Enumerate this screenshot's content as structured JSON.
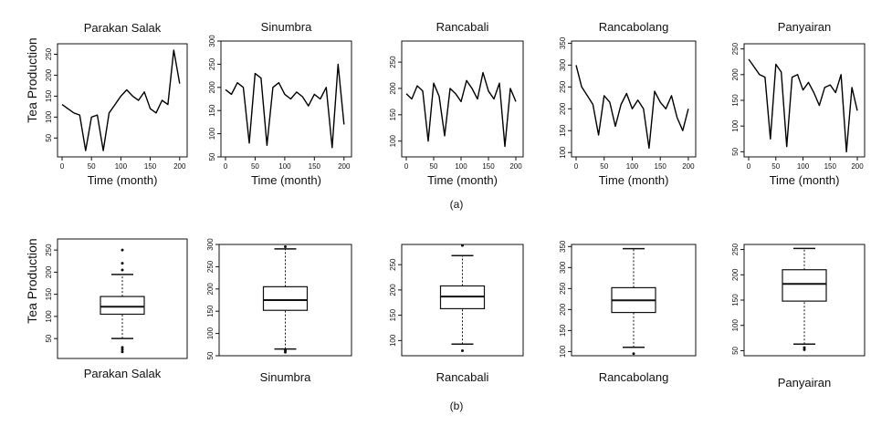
{
  "figure": {
    "row_labels": [
      "(a)",
      "(b)"
    ],
    "ylabel": "Tea Production"
  },
  "chart_data": [
    {
      "type": "line",
      "panel": "a",
      "title": "Parakan Salak",
      "xlabel": "Time (month)",
      "ylabel": "Tea Production",
      "xlim": [
        0,
        205
      ],
      "ylim": [
        5,
        275
      ],
      "xticks": [
        0,
        50,
        100,
        150,
        200
      ],
      "yticks": [
        50,
        100,
        150,
        200,
        250
      ],
      "x": [
        0,
        10,
        20,
        30,
        40,
        50,
        60,
        70,
        80,
        90,
        100,
        110,
        120,
        130,
        140,
        150,
        160,
        170,
        180,
        190,
        200
      ],
      "values": [
        130,
        120,
        110,
        105,
        20,
        100,
        105,
        20,
        110,
        130,
        150,
        165,
        150,
        140,
        160,
        120,
        110,
        140,
        130,
        260,
        180
      ]
    },
    {
      "type": "line",
      "panel": "a",
      "title": "Sinumbra",
      "xlabel": "Time (month)",
      "ylabel": "",
      "xlim": [
        0,
        205
      ],
      "ylim": [
        50,
        300
      ],
      "xticks": [
        0,
        50,
        100,
        150,
        200
      ],
      "yticks": [
        50,
        100,
        150,
        200,
        250,
        300
      ],
      "x": [
        0,
        10,
        20,
        30,
        40,
        50,
        60,
        70,
        80,
        90,
        100,
        110,
        120,
        130,
        140,
        150,
        160,
        170,
        180,
        190,
        200
      ],
      "values": [
        195,
        185,
        210,
        200,
        80,
        230,
        220,
        75,
        200,
        210,
        185,
        175,
        190,
        180,
        160,
        185,
        175,
        200,
        70,
        250,
        120
      ]
    },
    {
      "type": "line",
      "panel": "a",
      "title": "Rancabali",
      "xlabel": "Time (month)",
      "ylabel": "",
      "xlim": [
        0,
        205
      ],
      "ylim": [
        70,
        290
      ],
      "xticks": [
        0,
        50,
        100,
        150,
        200
      ],
      "yticks": [
        100,
        150,
        200,
        250
      ],
      "x": [
        0,
        10,
        20,
        30,
        40,
        50,
        60,
        70,
        80,
        90,
        100,
        110,
        120,
        130,
        140,
        150,
        160,
        170,
        180,
        190,
        200
      ],
      "values": [
        190,
        180,
        205,
        195,
        100,
        210,
        185,
        110,
        200,
        190,
        175,
        215,
        200,
        180,
        230,
        195,
        180,
        210,
        90,
        200,
        175
      ]
    },
    {
      "type": "line",
      "panel": "a",
      "title": "Rancabolang",
      "xlabel": "Time (month)",
      "ylabel": "",
      "xlim": [
        0,
        205
      ],
      "ylim": [
        90,
        355
      ],
      "xticks": [
        0,
        50,
        100,
        150,
        200
      ],
      "yticks": [
        100,
        150,
        200,
        250,
        300,
        350
      ],
      "x": [
        0,
        10,
        20,
        30,
        40,
        50,
        60,
        70,
        80,
        90,
        100,
        110,
        120,
        130,
        140,
        150,
        160,
        170,
        180,
        190,
        200
      ],
      "values": [
        300,
        250,
        230,
        210,
        140,
        230,
        215,
        160,
        210,
        235,
        200,
        220,
        200,
        110,
        240,
        215,
        200,
        230,
        180,
        150,
        200
      ]
    },
    {
      "type": "line",
      "panel": "a",
      "title": "Panyairan",
      "xlabel": "Time (month)",
      "ylabel": "",
      "xlim": [
        0,
        205
      ],
      "ylim": [
        40,
        260
      ],
      "xticks": [
        0,
        50,
        100,
        150,
        200
      ],
      "yticks": [
        50,
        100,
        150,
        200,
        250
      ],
      "x": [
        0,
        10,
        20,
        30,
        40,
        50,
        60,
        70,
        80,
        90,
        100,
        110,
        120,
        130,
        140,
        150,
        160,
        170,
        180,
        190,
        200
      ],
      "values": [
        230,
        215,
        200,
        195,
        75,
        220,
        205,
        60,
        195,
        200,
        170,
        185,
        165,
        140,
        175,
        180,
        165,
        200,
        50,
        175,
        130
      ]
    },
    {
      "type": "box",
      "panel": "b",
      "title": "Parakan Salak",
      "ylabel": "Tea Production",
      "ylim": [
        5,
        275
      ],
      "yticks": [
        50,
        100,
        150,
        200,
        250
      ],
      "whisker_low": 50,
      "q1": 105,
      "median": 122,
      "q3": 145,
      "whisker_high": 195,
      "outliers": [
        20,
        25,
        30,
        205,
        220,
        250
      ]
    },
    {
      "type": "box",
      "panel": "b",
      "title": "Sinumbra",
      "ylabel": "",
      "ylim": [
        50,
        300
      ],
      "yticks": [
        50,
        100,
        150,
        200,
        250,
        300
      ],
      "whisker_low": 65,
      "q1": 152,
      "median": 175,
      "q3": 205,
      "whisker_high": 290,
      "outliers": [
        58,
        62,
        295
      ]
    },
    {
      "type": "box",
      "panel": "b",
      "title": "Rancabali",
      "ylabel": "",
      "ylim": [
        70,
        290
      ],
      "yticks": [
        100,
        150,
        200,
        250
      ],
      "whisker_low": 93,
      "q1": 163,
      "median": 187,
      "q3": 208,
      "whisker_high": 268,
      "outliers": [
        80,
        288
      ]
    },
    {
      "type": "box",
      "panel": "b",
      "title": "Rancabolang",
      "ylabel": "",
      "ylim": [
        90,
        355
      ],
      "yticks": [
        100,
        150,
        200,
        250,
        300,
        350
      ],
      "whisker_low": 110,
      "q1": 193,
      "median": 222,
      "q3": 252,
      "whisker_high": 345,
      "outliers": [
        95
      ]
    },
    {
      "type": "box",
      "panel": "b",
      "title": "Panyairan",
      "ylabel": "",
      "ylim": [
        40,
        260
      ],
      "yticks": [
        50,
        100,
        150,
        200,
        250
      ],
      "whisker_low": 63,
      "q1": 148,
      "median": 182,
      "q3": 210,
      "whisker_high": 252,
      "outliers": [
        52,
        56
      ]
    }
  ]
}
